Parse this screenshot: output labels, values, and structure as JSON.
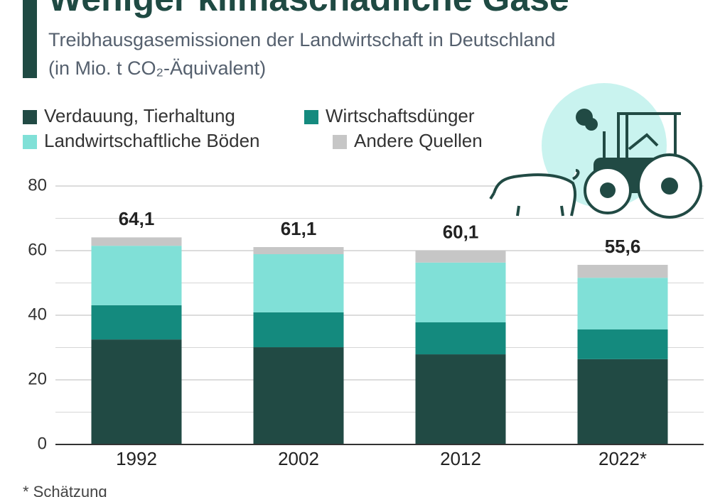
{
  "chart_data": {
    "type": "stacked_bar",
    "title": "Weniger klimaschädliche Gase",
    "subtitle": [
      "Treibhausgasemissionen der Landwirtschaft in Deutschland",
      "(in Mio. t CO₂-Äquivalent)"
    ],
    "categories": [
      "1992",
      "2002",
      "2012",
      "2022*"
    ],
    "series": [
      {
        "name": "Verdauung, Tierhaltung",
        "color": "#214a44",
        "values": [
          32.5,
          30.1,
          27.9,
          26.4
        ]
      },
      {
        "name": "Wirtschaftsdünger",
        "color": "#148a7e",
        "values": [
          10.6,
          10.8,
          9.9,
          9.2
        ]
      },
      {
        "name": "Landwirtschaftliche Böden",
        "color": "#80e0d7",
        "values": [
          18.4,
          18.0,
          18.5,
          16.0
        ]
      },
      {
        "name": "Andere Quellen",
        "color": "#c6c6c6",
        "values": [
          2.6,
          2.2,
          3.8,
          4.0
        ]
      }
    ],
    "totals": [
      64.1,
      61.1,
      60.1,
      55.6
    ],
    "total_labels": [
      "64,1",
      "61,1",
      "60,1",
      "55,6"
    ],
    "ylim": [
      0,
      80
    ],
    "yticks": [
      0,
      20,
      40,
      60,
      80
    ],
    "minor_yticks": [
      10,
      30,
      50,
      70
    ],
    "grid": true,
    "footnote": "* Schätzung"
  }
}
